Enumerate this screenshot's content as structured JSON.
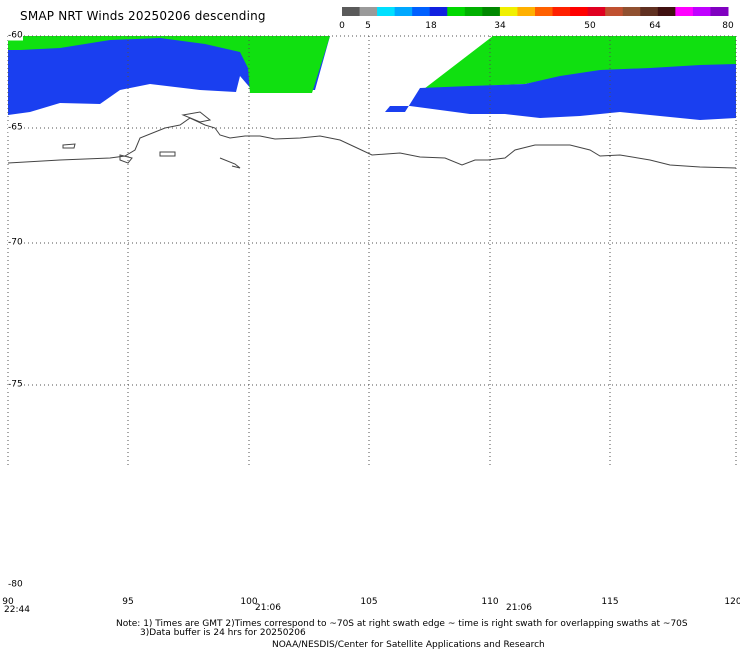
{
  "title": "SMAP NRT Winds  20250206 descending",
  "colorbar": {
    "labels": [
      "0",
      "5",
      "18",
      "34",
      "50",
      "64",
      "80"
    ],
    "segments": [
      "#5a5a5a",
      "#9a9a9a",
      "#00e0ff",
      "#00a8ff",
      "#0060ff",
      "#1020e0",
      "#00d800",
      "#00b000",
      "#008800",
      "#f0f000",
      "#ffb000",
      "#ff6000",
      "#ff2000",
      "#ff0000",
      "#e00020",
      "#c05030",
      "#905030",
      "#603020",
      "#401010",
      "#ff00ff",
      "#c000ff",
      "#8000c0"
    ]
  },
  "lat_labels": [
    "-60",
    "-65",
    "-70",
    "-75",
    "-80"
  ],
  "lon_labels": [
    "90",
    "95",
    "100",
    "105",
    "110",
    "115",
    "120"
  ],
  "time_labels": [
    "22:44",
    "21:06",
    "21:06"
  ],
  "notes": {
    "line1": "Note: 1) Times are GMT 2)Times correspond to ~70S at right swath edge ~ time is right swath for overlapping swaths at ~70S",
    "line2": "3)Data buffer is 24 hrs for 20250206",
    "line3": "NOAA/NESDIS/Center for Satellite Applications and Research"
  },
  "legend_colors": {
    "low_wind": "#1a3cf0",
    "moderate_wind": "#00e000",
    "coastline": "#404040",
    "grid": "#505050"
  }
}
